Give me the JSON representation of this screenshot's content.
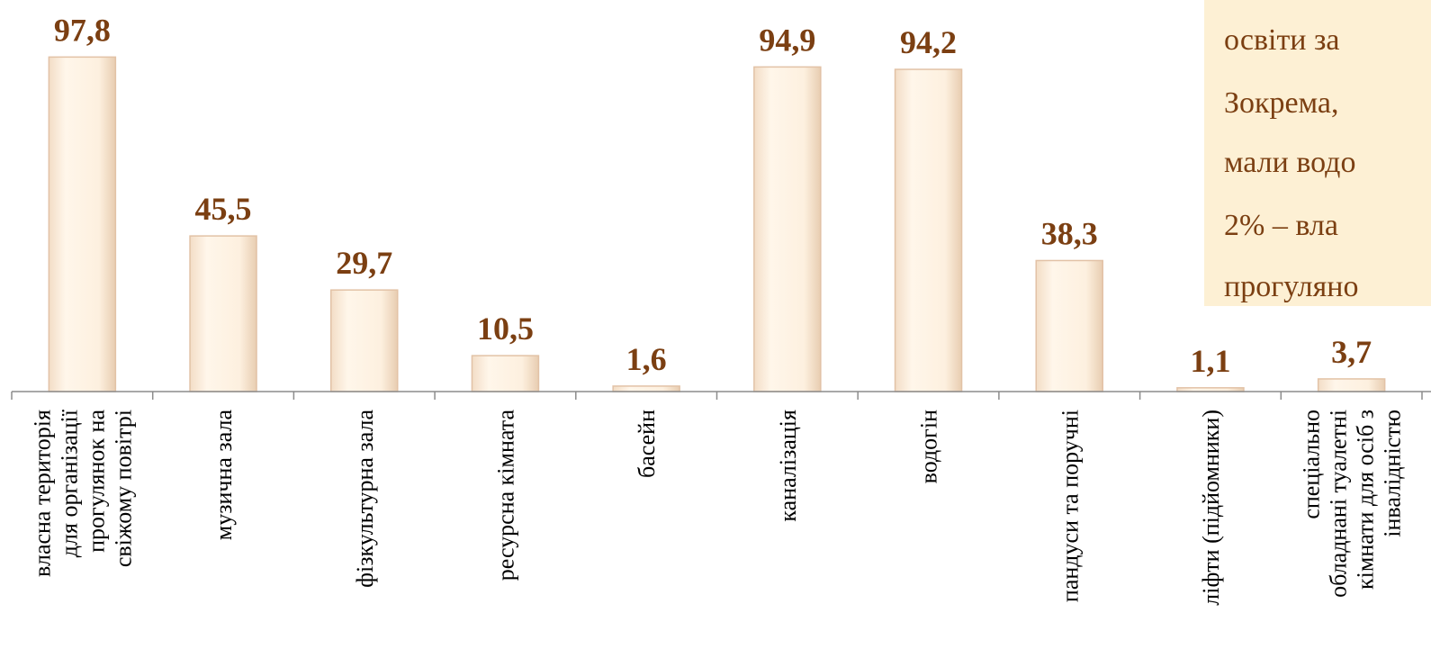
{
  "chart_data": {
    "type": "bar",
    "categories": [
      [
        "власна територія",
        "для організації",
        "прогулянок на",
        "свіжому повітрі"
      ],
      [
        "музична зала"
      ],
      [
        "фізкультурна зала"
      ],
      [
        "ресурсна кімната"
      ],
      [
        "басейн"
      ],
      [
        "каналізація"
      ],
      [
        "водогін"
      ],
      [
        "пандуси та поручні"
      ],
      [
        "ліфти (підйомники)"
      ],
      [
        "спеціально",
        "обладнані туалетні",
        "кімнати для осіб з",
        "інвалідністю"
      ]
    ],
    "values": [
      97.8,
      45.5,
      29.7,
      10.5,
      1.6,
      94.9,
      94.2,
      38.3,
      1.1,
      3.7
    ],
    "value_labels": [
      "97,8",
      "45,5",
      "29,7",
      "10,5",
      "1,6",
      "94,9",
      "94,2",
      "38,3",
      "1,1",
      "3,7"
    ],
    "ylim": [
      0,
      100
    ],
    "grid": false,
    "colors": {
      "bar_fill": "#fdf0df",
      "bar_stroke": "#e2c2a6",
      "value_label": "#7b3f12",
      "axis": "#8c8c8c"
    }
  },
  "callout": {
    "lines": [
      "освіти     за",
      "Зокрема,",
      "мали  водо",
      "2%  –  вла",
      "прогулянo"
    ],
    "background": "#fdf0d4"
  }
}
